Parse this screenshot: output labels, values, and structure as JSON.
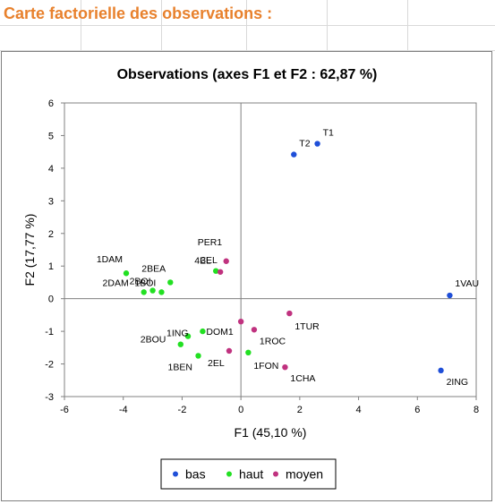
{
  "sheet": {
    "title": "Carte factorielle des observations :"
  },
  "chart_data": {
    "type": "scatter",
    "title": "Observations (axes F1 et F2 : 62,87 %)",
    "xlabel": "F1 (45,10 %)",
    "ylabel": "F2 (17,77 %)",
    "xlim": [
      -6,
      8
    ],
    "ylim": [
      -3,
      6
    ],
    "xticks": [
      -6,
      -4,
      -2,
      0,
      2,
      4,
      6,
      8
    ],
    "yticks": [
      -3,
      -2,
      -1,
      0,
      1,
      2,
      3,
      4,
      5,
      6
    ],
    "grid": false,
    "legend": "bottom",
    "series": [
      {
        "name": "bas",
        "color": "#1f4fd8",
        "points": [
          {
            "label": "T1",
            "x": 2.6,
            "y": 4.75
          },
          {
            "label": "T2",
            "x": 1.8,
            "y": 4.42
          },
          {
            "label": "1VAU",
            "x": 7.1,
            "y": 0.1
          },
          {
            "label": "2ING",
            "x": 6.8,
            "y": -2.2
          }
        ]
      },
      {
        "name": "haut",
        "color": "#22e022",
        "points": [
          {
            "label": "1DAM",
            "x": -3.9,
            "y": 0.78
          },
          {
            "label": "2DAM",
            "x": -3.3,
            "y": 0.2
          },
          {
            "label": "2BOI",
            "x": -3.0,
            "y": 0.25
          },
          {
            "label": "1BOI",
            "x": -2.7,
            "y": 0.2
          },
          {
            "label": "2BEA",
            "x": -2.4,
            "y": 0.5
          },
          {
            "label": "4EL",
            "x": -0.85,
            "y": 0.85
          },
          {
            "label": "DOM1",
            "x": -1.3,
            "y": -1.0
          },
          {
            "label": "1ING",
            "x": -1.8,
            "y": -1.15
          },
          {
            "label": "2BOU",
            "x": -2.05,
            "y": -1.4
          },
          {
            "label": "1BEN",
            "x": -1.45,
            "y": -1.75
          },
          {
            "label": "1FON",
            "x": 0.25,
            "y": -1.65
          }
        ]
      },
      {
        "name": "moyen",
        "color": "#c0327f",
        "points": [
          {
            "label": "PER1",
            "x": -0.5,
            "y": 1.15
          },
          {
            "label": "3EL",
            "x": -0.7,
            "y": 0.82
          },
          {
            "label": "1TUR",
            "x": 1.65,
            "y": -0.45
          },
          {
            "label": "1ROC",
            "x": 0.45,
            "y": -0.95
          },
          {
            "label": "2EL",
            "x": -0.4,
            "y": -1.6
          },
          {
            "label": "1CHA",
            "x": 1.5,
            "y": -2.1
          },
          {
            "label": "",
            "x": 0.0,
            "y": -0.7
          }
        ]
      }
    ]
  }
}
